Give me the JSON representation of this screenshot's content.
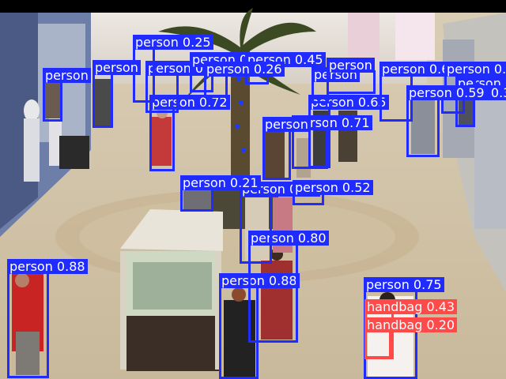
{
  "detections": [
    {
      "label": "person 0.88",
      "cls": "person"
    },
    {
      "label": "person 0.88",
      "cls": "person"
    },
    {
      "label": "person 0.80",
      "cls": "person"
    },
    {
      "label": "person 0.75",
      "cls": "person"
    },
    {
      "label": "handbag 0.43",
      "cls": "handbag"
    },
    {
      "label": "handbag 0.20",
      "cls": "handbag"
    },
    {
      "label": "person 0.72",
      "cls": "person"
    },
    {
      "label": "person 0.70",
      "cls": "person"
    },
    {
      "label": "person 0.52",
      "cls": "person"
    },
    {
      "label": "person 0.71",
      "cls": "person"
    },
    {
      "label": "person 0.65",
      "cls": "person"
    },
    {
      "label": "person 0.62",
      "cls": "person"
    },
    {
      "label": "person 0.67",
      "cls": "person"
    },
    {
      "label": "person 0.63",
      "cls": "person"
    },
    {
      "label": "person 0.54",
      "cls": "person"
    },
    {
      "label": "person 0.45",
      "cls": "person"
    },
    {
      "label": "person 0.25",
      "cls": "person"
    },
    {
      "label": "person 0.31",
      "cls": "person"
    },
    {
      "label": "person 0.35",
      "cls": "person"
    },
    {
      "label": "person 0.59",
      "cls": "person"
    },
    {
      "label": "person 0.26",
      "cls": "person"
    },
    {
      "label": "person 0.21",
      "cls": "person"
    },
    {
      "label": "person",
      "cls": "person"
    },
    {
      "label": "person",
      "cls": "person"
    },
    {
      "label": "person",
      "cls": "person"
    },
    {
      "label": "person",
      "cls": "person"
    },
    {
      "label": "person",
      "cls": "person"
    }
  ],
  "colors": {
    "person": "#1f2bff",
    "handbag": "#ff4a4a"
  }
}
